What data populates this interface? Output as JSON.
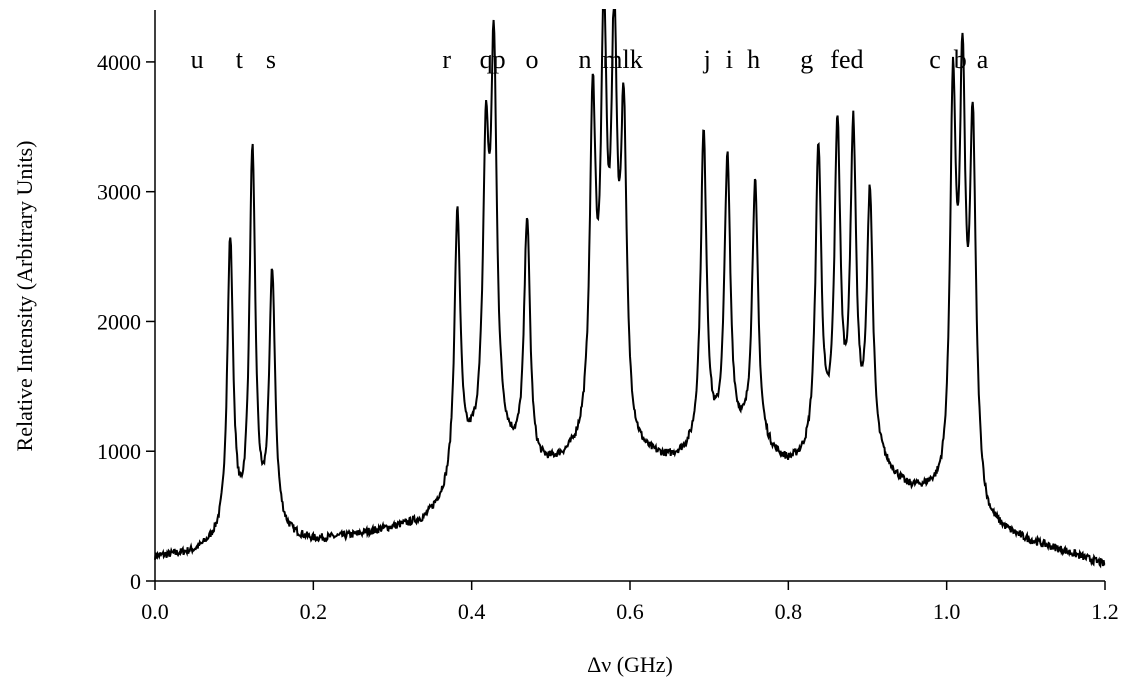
{
  "chart_data": {
    "type": "line",
    "xlabel": "Δν (GHz)",
    "ylabel": "Relative Intensity (Arbitrary Units)",
    "xlim": [
      0.0,
      1.2
    ],
    "ylim": [
      0,
      4400
    ],
    "xticks": [
      0.0,
      0.2,
      0.4,
      0.6,
      0.8,
      1.0,
      1.2
    ],
    "xtick_labels": [
      "0.0",
      "0.2",
      "0.4",
      "0.6",
      "0.8",
      "1.0",
      "1.2"
    ],
    "yticks": [
      0,
      1000,
      2000,
      3000,
      4000
    ],
    "ytick_labels": [
      "0",
      "1000",
      "2000",
      "3000",
      "4000"
    ],
    "grid": false,
    "line_color": "#000000",
    "baseline_points": [
      [
        0.0,
        180
      ],
      [
        0.05,
        210
      ],
      [
        0.075,
        270
      ],
      [
        0.16,
        330
      ],
      [
        0.2,
        300
      ],
      [
        0.25,
        340
      ],
      [
        0.3,
        400
      ],
      [
        0.34,
        450
      ],
      [
        0.37,
        620
      ],
      [
        0.4,
        920
      ],
      [
        0.44,
        960
      ],
      [
        0.48,
        820
      ],
      [
        0.52,
        900
      ],
      [
        0.55,
        1000
      ],
      [
        0.6,
        930
      ],
      [
        0.65,
        900
      ],
      [
        0.69,
        950
      ],
      [
        0.74,
        1030
      ],
      [
        0.77,
        960
      ],
      [
        0.8,
        860
      ],
      [
        0.84,
        900
      ],
      [
        0.89,
        900
      ],
      [
        0.92,
        820
      ],
      [
        0.95,
        680
      ],
      [
        0.98,
        640
      ],
      [
        1.0,
        560
      ],
      [
        1.04,
        560
      ],
      [
        1.05,
        400
      ],
      [
        1.1,
        300
      ],
      [
        1.15,
        220
      ],
      [
        1.2,
        120
      ]
    ],
    "peaks": [
      {
        "x": 0.095,
        "height": 2500,
        "label": "u"
      },
      {
        "x": 0.123,
        "height": 3170,
        "label": "t"
      },
      {
        "x": 0.148,
        "height": 2230,
        "label": "s"
      },
      {
        "x": 0.382,
        "height": 2610,
        "label": "r"
      },
      {
        "x": 0.418,
        "height": 2900,
        "label": "q"
      },
      {
        "x": 0.428,
        "height": 3650,
        "label": "p"
      },
      {
        "x": 0.47,
        "height": 2530,
        "label": "o"
      },
      {
        "x": 0.553,
        "height": 3240,
        "label": "n"
      },
      {
        "x": 0.567,
        "height": 3750,
        "label": "m"
      },
      {
        "x": 0.58,
        "height": 3650,
        "label": "l"
      },
      {
        "x": 0.592,
        "height": 3100,
        "label": "k"
      },
      {
        "x": 0.693,
        "height": 3160,
        "label": "j"
      },
      {
        "x": 0.723,
        "height": 2940,
        "label": "i"
      },
      {
        "x": 0.758,
        "height": 2770,
        "label": "h"
      },
      {
        "x": 0.838,
        "height": 3030,
        "label": "g"
      },
      {
        "x": 0.862,
        "height": 3150,
        "label": "f"
      },
      {
        "x": 0.882,
        "height": 3120,
        "label": "e"
      },
      {
        "x": 0.903,
        "height": 2680,
        "label": "d"
      },
      {
        "x": 1.008,
        "height": 3400,
        "label": "c"
      },
      {
        "x": 1.02,
        "height": 3420,
        "label": "b"
      },
      {
        "x": 1.033,
        "height": 3140,
        "label": "a"
      }
    ],
    "peak_labels": [
      {
        "text": "u",
        "x": 0.045
      },
      {
        "text": "t",
        "x": 0.102
      },
      {
        "text": "s",
        "x": 0.14
      },
      {
        "text": "r",
        "x": 0.363
      },
      {
        "text": "qp",
        "x": 0.41
      },
      {
        "text": "o",
        "x": 0.468
      },
      {
        "text": "n",
        "x": 0.535
      },
      {
        "text": "mlk",
        "x": 0.565
      },
      {
        "text": "j",
        "x": 0.693
      },
      {
        "text": "i",
        "x": 0.721
      },
      {
        "text": "h",
        "x": 0.748
      },
      {
        "text": "g",
        "x": 0.815
      },
      {
        "text": "fed",
        "x": 0.853
      },
      {
        "text": "c",
        "x": 0.978
      },
      {
        "text": "b",
        "x": 1.009
      },
      {
        "text": "a",
        "x": 1.038
      }
    ]
  }
}
